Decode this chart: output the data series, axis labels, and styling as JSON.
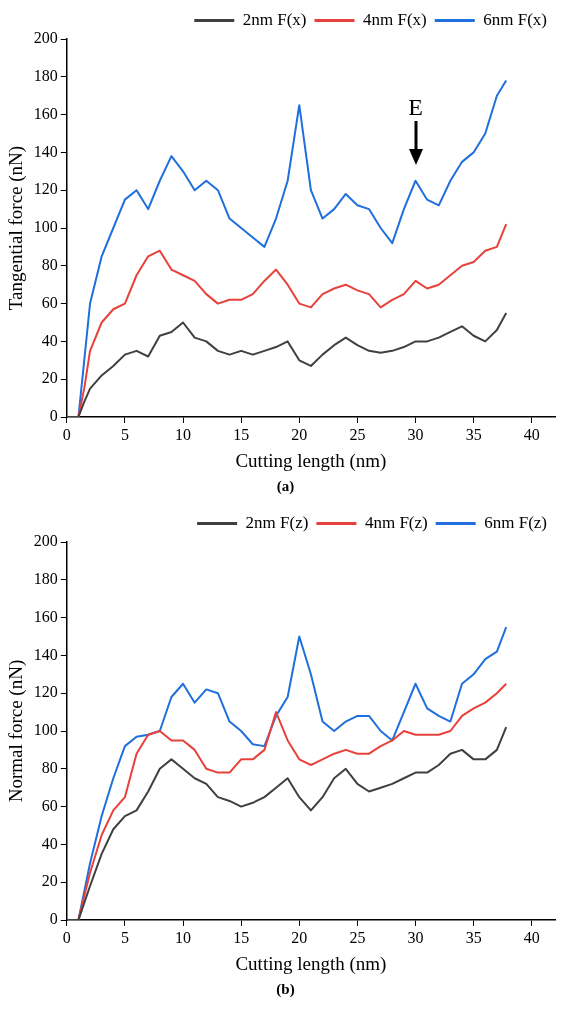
{
  "chart_data": [
    {
      "type": "line",
      "xlabel": "Cutting length (nm)",
      "ylabel": "Tangential force (nN)",
      "xlim": [
        0,
        42
      ],
      "xticks": [
        0,
        5,
        10,
        15,
        20,
        25,
        30,
        35,
        40
      ],
      "ylim": [
        0,
        200
      ],
      "yticks": [
        0,
        20,
        40,
        60,
        80,
        100,
        120,
        140,
        160,
        180,
        200
      ],
      "grid": false,
      "legend": "top",
      "marker": "none",
      "annotations": [
        {
          "text": "E",
          "x": 30,
          "y": 125
        },
        "(a)"
      ],
      "x": [
        0,
        1,
        1.5,
        2,
        3,
        4,
        5,
        6,
        7,
        8,
        9,
        10,
        11,
        12,
        13,
        14,
        15,
        16,
        17,
        18,
        19,
        20,
        21,
        22,
        23,
        24,
        25,
        26,
        27,
        28,
        29,
        30,
        31,
        32,
        33,
        34,
        35,
        36,
        37,
        37.8
      ],
      "series": [
        {
          "name": "2nm F(x)",
          "color": "#404040",
          "values": [
            0,
            0,
            8,
            15,
            22,
            27,
            33,
            35,
            32,
            43,
            45,
            50,
            42,
            40,
            35,
            33,
            35,
            33,
            35,
            37,
            40,
            30,
            27,
            33,
            38,
            42,
            38,
            35,
            34,
            35,
            37,
            40,
            40,
            42,
            45,
            48,
            43,
            40,
            46,
            55
          ]
        },
        {
          "name": "4nm F(x)",
          "color": "#e8413c",
          "values": [
            0,
            0,
            15,
            35,
            50,
            57,
            60,
            75,
            85,
            88,
            78,
            75,
            72,
            65,
            60,
            62,
            62,
            65,
            72,
            78,
            70,
            60,
            58,
            65,
            68,
            70,
            67,
            65,
            58,
            62,
            65,
            72,
            68,
            70,
            75,
            80,
            82,
            88,
            90,
            102
          ]
        },
        {
          "name": "6nm F(x)",
          "color": "#1f6fdc",
          "values": [
            0,
            0,
            30,
            60,
            85,
            100,
            115,
            120,
            110,
            125,
            138,
            130,
            120,
            125,
            120,
            105,
            100,
            95,
            90,
            105,
            125,
            165,
            120,
            105,
            110,
            118,
            112,
            110,
            100,
            92,
            110,
            125,
            115,
            112,
            125,
            135,
            140,
            150,
            170,
            178
          ]
        }
      ]
    },
    {
      "type": "line",
      "xlabel": "Cutting length (nm)",
      "ylabel": "Normal force (nN)",
      "xlim": [
        0,
        42
      ],
      "xticks": [
        0,
        5,
        10,
        15,
        20,
        25,
        30,
        35,
        40
      ],
      "ylim": [
        0,
        200
      ],
      "yticks": [
        0,
        20,
        40,
        60,
        80,
        100,
        120,
        140,
        160,
        180,
        200
      ],
      "grid": false,
      "legend": "top",
      "marker": "none",
      "annotations": [
        "(b)"
      ],
      "x": [
        0,
        1,
        2,
        3,
        4,
        5,
        6,
        7,
        8,
        9,
        10,
        11,
        12,
        13,
        14,
        15,
        16,
        17,
        18,
        19,
        20,
        21,
        22,
        23,
        24,
        25,
        26,
        27,
        28,
        29,
        30,
        31,
        32,
        33,
        34,
        35,
        36,
        37,
        37.8
      ],
      "series": [
        {
          "name": "2nm F(z)",
          "color": "#404040",
          "values": [
            0,
            0,
            18,
            35,
            48,
            55,
            58,
            68,
            80,
            85,
            80,
            75,
            72,
            65,
            63,
            60,
            62,
            65,
            70,
            75,
            65,
            58,
            65,
            75,
            80,
            72,
            68,
            70,
            72,
            75,
            78,
            78,
            82,
            88,
            90,
            85,
            85,
            90,
            102
          ]
        },
        {
          "name": "4nm F(z)",
          "color": "#e8413c",
          "values": [
            0,
            0,
            25,
            45,
            58,
            65,
            88,
            98,
            100,
            95,
            95,
            90,
            80,
            78,
            78,
            85,
            85,
            90,
            110,
            95,
            85,
            82,
            85,
            88,
            90,
            88,
            88,
            92,
            95,
            100,
            98,
            98,
            98,
            100,
            108,
            112,
            115,
            120,
            125
          ]
        },
        {
          "name": "6nm F(z)",
          "color": "#1f6fdc",
          "values": [
            0,
            0,
            30,
            55,
            75,
            92,
            97,
            98,
            100,
            118,
            125,
            115,
            122,
            120,
            105,
            100,
            93,
            92,
            108,
            118,
            150,
            130,
            105,
            100,
            105,
            108,
            108,
            100,
            95,
            110,
            125,
            112,
            108,
            105,
            125,
            130,
            138,
            142,
            155
          ]
        }
      ]
    }
  ]
}
